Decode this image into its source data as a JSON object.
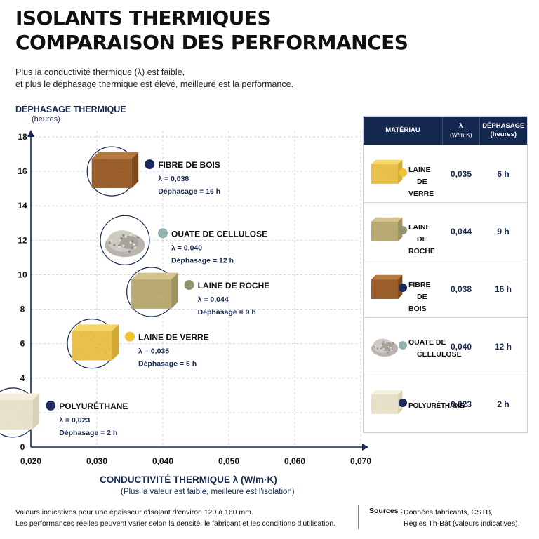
{
  "title_line1": "ISOLANTS THERMIQUES",
  "title_line2": "COMPARAISON DES PERFORMANCES",
  "subtitle_line1": "Plus la conductivité thermique (λ) est faible,",
  "subtitle_line2": "et plus le déphasage thermique est élevé, meilleure est la performance.",
  "colors": {
    "navy": "#15284f",
    "grid": "#cfd3da",
    "bois": "#1d2b5c",
    "cellulose": "#8fb3ad",
    "roche": "#8f9471",
    "verre": "#f1c232",
    "polyurethane": "#1d2b5c"
  },
  "chart_data": {
    "type": "scatter",
    "ylabel": "DÉPHASAGE THERMIQUE",
    "ylabel_unit": "(heures)",
    "xlabel": "CONDUCTIVITÉ THERMIQUE λ (W/m·K)",
    "xlabel_note": "(Plus la valeur est faible, meilleure est l'isolation)",
    "xlim": [
      0.02,
      0.07
    ],
    "ylim": [
      0,
      18
    ],
    "x_ticks": [
      "0,020",
      "0,030",
      "0,040",
      "0,050",
      "0,060",
      "0,070"
    ],
    "y_ticks": [
      "0",
      "2",
      "4",
      "6",
      "8",
      "10",
      "12",
      "14",
      "16",
      "18"
    ],
    "grid": true,
    "points": [
      {
        "name": "FIBRE DE BOIS",
        "x": 0.038,
        "y": 16,
        "lambda_text": "λ = 0,038",
        "dephasage_text": "Déphasage = 16 h",
        "icon": "wood-fiber-block",
        "color_key": "bois"
      },
      {
        "name": "OUATE DE CELLULOSE",
        "x": 0.04,
        "y": 12,
        "lambda_text": "λ = 0,040",
        "dephasage_text": "Déphasage = 12 h",
        "icon": "cellulose-pile",
        "color_key": "cellulose"
      },
      {
        "name": "LAINE DE ROCHE",
        "x": 0.044,
        "y": 9,
        "lambda_text": "λ = 0,044",
        "dephasage_text": "Déphasage = 9 h",
        "icon": "rock-wool-block",
        "color_key": "roche"
      },
      {
        "name": "LAINE DE VERRE",
        "x": 0.035,
        "y": 6,
        "lambda_text": "λ = 0,035",
        "dephasage_text": "Déphasage = 6 h",
        "icon": "glass-wool-block",
        "color_key": "verre"
      },
      {
        "name": "POLYURÉTHANE",
        "x": 0.023,
        "y": 2,
        "lambda_text": "λ = 0,023",
        "dephasage_text": "Déphasage = 2 h",
        "icon": "polyurethane-block",
        "color_key": "polyurethane"
      }
    ]
  },
  "table": {
    "headers": {
      "material": "MATÉRIAU",
      "lambda": "λ",
      "lambda_unit": "(W/m·K)",
      "dephasage": "DÉPHASAGE",
      "dephasage_unit": "(heures)"
    },
    "rows": [
      {
        "name_line1": "LAINE",
        "name_line2": "DE VERRE",
        "lambda": "0,035",
        "dephasage": "6 h",
        "icon": "glass-wool-block",
        "color_key": "verre"
      },
      {
        "name_line1": "LAINE",
        "name_line2": "DE ROCHE",
        "lambda": "0,044",
        "dephasage": "9 h",
        "icon": "rock-wool-block",
        "color_key": "roche"
      },
      {
        "name_line1": "FIBRE",
        "name_line2": "DE BOIS",
        "lambda": "0,038",
        "dephasage": "16 h",
        "icon": "wood-fiber-block",
        "color_key": "bois"
      },
      {
        "name_line1": "OUATE DE",
        "name_line2": "CELLULOSE",
        "lambda": "0,040",
        "dephasage": "12 h",
        "icon": "cellulose-pile",
        "color_key": "cellulose"
      },
      {
        "name_line1": "POLYURÉTHANE",
        "name_line2": "",
        "lambda": "0,023",
        "dephasage": "2 h",
        "icon": "polyurethane-block",
        "color_key": "polyurethane"
      }
    ]
  },
  "footer": {
    "note_line1": "Valeurs indicatives pour une épaisseur d'isolant d'environ 120 à 160 mm.",
    "note_line2": "Les performances réelles peuvent varier selon la densité, le fabricant et les conditions d'utilisation.",
    "sources_label": "Sources :",
    "sources_line1": "Données fabricants, CSTB,",
    "sources_line2": "Règles Th-Bât (valeurs indicatives)."
  }
}
